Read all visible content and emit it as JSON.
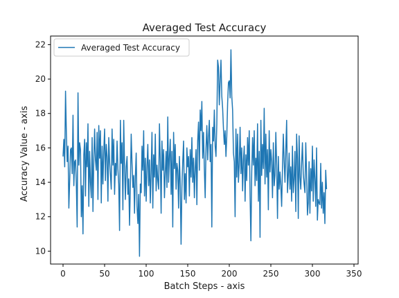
{
  "chart_data": {
    "type": "line",
    "title": "Averaged Test Accuracy",
    "xlabel": "Batch Steps - axis",
    "ylabel": "Accuracy Value - axis",
    "xlim": [
      -15,
      355
    ],
    "ylim": [
      9.25,
      22.5
    ],
    "xticks": [
      0,
      50,
      100,
      150,
      200,
      250,
      300,
      350
    ],
    "yticks": [
      10,
      12,
      14,
      16,
      18,
      20,
      22
    ],
    "grid": false,
    "legend_position": "top-left",
    "color": "#1f77b4",
    "series": [
      {
        "name": "Averaged Test Accuracy",
        "x_start": 0,
        "x_step": 1,
        "values": [
          15.5,
          16.5,
          14.9,
          19.3,
          16.9,
          15.2,
          16.1,
          12.5,
          14.1,
          15.9,
          16.0,
          14.5,
          17.9,
          13.8,
          15.2,
          15.3,
          13.9,
          11.4,
          19.2,
          15.0,
          16.3,
          15.9,
          12.0,
          13.8,
          11.0,
          15.6,
          16.5,
          13.2,
          16.3,
          14.9,
          17.4,
          12.6,
          15.8,
          14.0,
          13.1,
          16.6,
          12.3,
          15.3,
          17.1,
          15.3,
          14.7,
          16.9,
          13.0,
          17.3,
          15.4,
          17.0,
          12.8,
          16.1,
          13.9,
          15.8,
          17.1,
          14.1,
          16.2,
          15.5,
          12.9,
          16.6,
          15.2,
          14.4,
          13.6,
          17.1,
          15.0,
          16.5,
          13.3,
          15.1,
          14.4,
          16.4,
          14.8,
          13.9,
          11.2,
          17.6,
          15.1,
          16.3,
          12.4,
          17.6,
          15.0,
          13.0,
          14.9,
          15.5,
          13.3,
          14.2,
          11.5,
          13.8,
          16.8,
          15.1,
          13.7,
          14.4,
          12.2,
          14.3,
          15.7,
          12.6,
          11.6,
          13.3,
          9.7,
          13.9,
          13.4,
          16.1,
          14.7,
          17.0,
          13.2,
          15.4,
          12.9,
          14.9,
          16.2,
          13.8,
          15.3,
          12.8,
          14.6,
          16.9,
          12.5,
          15.6,
          14.3,
          16.8,
          13.5,
          15.0,
          14.1,
          13.6,
          17.4,
          15.2,
          12.2,
          16.4,
          14.7,
          15.9,
          13.1,
          14.5,
          15.8,
          13.7,
          17.8,
          14.0,
          15.5,
          16.5,
          13.3,
          15.8,
          11.4,
          16.9,
          14.8,
          16.2,
          13.6,
          15.1,
          14.7,
          12.5,
          15.5,
          13.9,
          10.4,
          13.7,
          15.2,
          16.4,
          13.0,
          14.5,
          12.8,
          16.0,
          14.9,
          15.5,
          13.2,
          15.9,
          14.3,
          16.6,
          14.0,
          15.4,
          13.1,
          14.8,
          15.9,
          12.7,
          16.4,
          17.5,
          14.7,
          18.2,
          17.0,
          18.7,
          15.4,
          16.9,
          14.8,
          13.1,
          16.0,
          17.3,
          15.3,
          16.6,
          17.6,
          15.2,
          16.2,
          11.4,
          17.2,
          16.4,
          18.2,
          16.1,
          15.5,
          17.4,
          21.1,
          20.7,
          18.5,
          19.9,
          21.1,
          19.0,
          18.3,
          17.1,
          16.2,
          17.0,
          15.5,
          16.7,
          18.6,
          19.8,
          19.9,
          18.9,
          21.7,
          19.0,
          18.2,
          15.7,
          15.2,
          12.0,
          17.1,
          14.3,
          16.8,
          14.0,
          15.0,
          17.2,
          14.5,
          16.0,
          13.5,
          15.3,
          16.1,
          12.9,
          15.6,
          14.1,
          16.6,
          15.0,
          17.0,
          13.2,
          10.6,
          14.6,
          16.6,
          15.0,
          17.0,
          13.8,
          15.4,
          14.1,
          17.4,
          12.9,
          15.8,
          10.8,
          17.6,
          14.4,
          16.2,
          14.8,
          18.3,
          13.9,
          16.8,
          14.3,
          15.9,
          12.4,
          17.0,
          14.6,
          15.9,
          15.2,
          13.1,
          16.3,
          13.8,
          14.4,
          16.9,
          15.0,
          11.9,
          15.5,
          13.6,
          14.6,
          13.8,
          12.6,
          14.9,
          16.8,
          15.2,
          14.0,
          15.9,
          17.6,
          13.4,
          14.4,
          15.7,
          13.6,
          14.9,
          12.9,
          16.1,
          13.4,
          14.2,
          15.8,
          12.3,
          16.8,
          15.4,
          11.9,
          16.7,
          14.3,
          13.6,
          15.1,
          16.3,
          14.5,
          13.9,
          13.4,
          16.3,
          14.6,
          12.1,
          12.8,
          15.2,
          12.2,
          14.8,
          13.5,
          16.1,
          12.9,
          15.3,
          14.2,
          12.6,
          16.0,
          11.8,
          13.0,
          12.8,
          12.7,
          15.1,
          12.5,
          14.0,
          12.2,
          13.4,
          11.6,
          14.7,
          13.6
        ]
      }
    ]
  }
}
